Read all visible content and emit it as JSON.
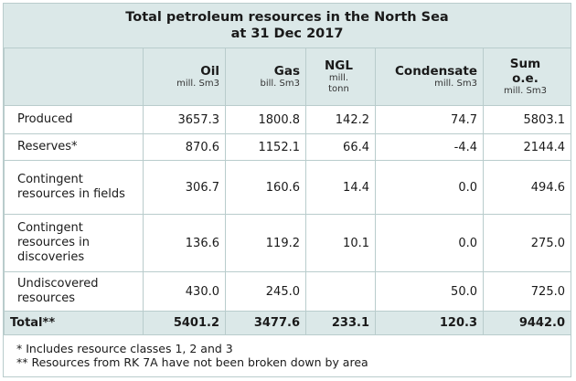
{
  "title_line1": "Total petroleum resources in the North Sea",
  "title_line2": "at 31 Dec 2017",
  "columns": [
    {
      "name": "Oil",
      "unit": "mill. Sm3"
    },
    {
      "name": "Gas",
      "unit": "bill. Sm3"
    },
    {
      "name": "NGL",
      "unit": "mill. tonn"
    },
    {
      "name": "Condensate",
      "unit": "mill. Sm3"
    },
    {
      "name": "Sum o.e.",
      "unit": "mill. Sm3"
    }
  ],
  "rows": [
    {
      "label": "Produced",
      "values": [
        "3657.3",
        "1800.8",
        "142.2",
        "74.7",
        "5803.1"
      ]
    },
    {
      "label": "Reserves*",
      "values": [
        "870.6",
        "1152.1",
        "66.4",
        "-4.4",
        "2144.4"
      ]
    },
    {
      "label": "Contingent resources in fields",
      "values": [
        "306.7",
        "160.6",
        "14.4",
        "0.0",
        "494.6"
      ]
    },
    {
      "label": "Contingent resources in discoveries",
      "values": [
        "136.6",
        "119.2",
        "10.1",
        "0.0",
        "275.0"
      ]
    },
    {
      "label": "Undiscovered resources",
      "values": [
        "430.0",
        "245.0",
        "",
        "50.0",
        "725.0"
      ]
    }
  ],
  "total": {
    "label": "Total**",
    "values": [
      "5401.2",
      "3477.6",
      "233.1",
      "120.3",
      "9442.0"
    ]
  },
  "footnotes": [
    "* Includes resource classes 1, 2 and 3",
    "** Resources from RK 7A have not been broken down by area"
  ]
}
